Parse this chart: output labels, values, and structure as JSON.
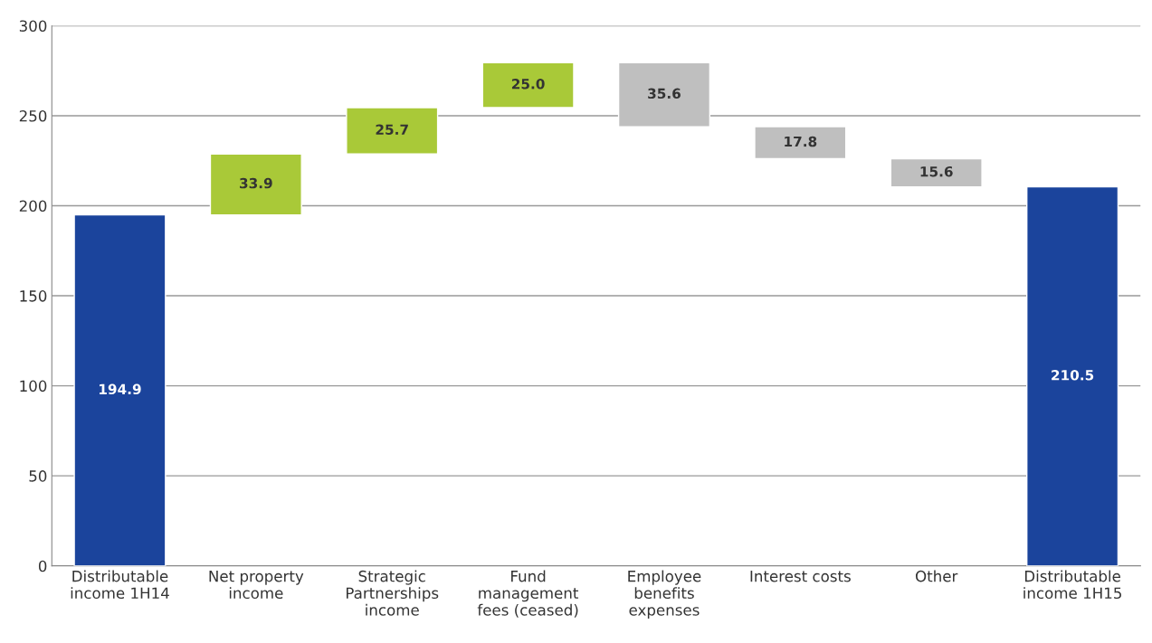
{
  "chart_data": {
    "type": "bar",
    "categories": [
      "Distributable\nincome 1H14",
      "Net property\nincome",
      "Strategic\nPartnerships\nincome",
      "Fund\nmanagement\nfees (ceased)",
      "Employee\nbenefits\nexpenses",
      "Interest costs",
      "Other",
      "Distributable\nincome 1H15"
    ],
    "values": [
      194.9,
      33.9,
      25.7,
      25.0,
      35.6,
      17.8,
      15.6,
      210.5
    ],
    "base": [
      0,
      194.9,
      228.8,
      254.5,
      243.9,
      226.1,
      210.5,
      0
    ],
    "colors": [
      "#1b449c",
      "#a9c938",
      "#a9c938",
      "#a9c938",
      "#bfbfbf",
      "#bfbfbf",
      "#bfbfbf",
      "#1b449c"
    ],
    "ylim": [
      0,
      300
    ],
    "yticks": [
      0,
      50,
      100,
      150,
      200,
      250,
      300
    ],
    "value_labels": [
      "194.9",
      "33.9",
      "25.7",
      "25.0",
      "35.6",
      "17.8",
      "15.6",
      "210.5"
    ],
    "grid": "y"
  }
}
